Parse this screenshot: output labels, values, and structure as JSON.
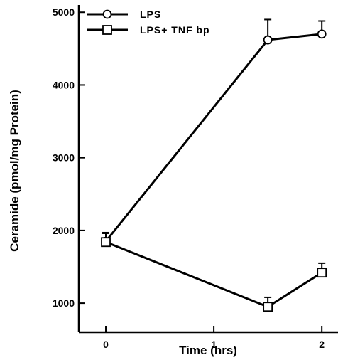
{
  "chart_data": {
    "type": "line",
    "xlabel": "Time  (hrs)",
    "ylabel": "Ceramide (pmol/mg Protein)",
    "xlim": [
      -0.25,
      2.15
    ],
    "ylim": [
      600,
      5100
    ],
    "x_ticks": [
      0,
      1,
      2
    ],
    "y_ticks": [
      1000,
      2000,
      3000,
      4000,
      5000
    ],
    "grid": false,
    "legend_position": "top-left",
    "series": [
      {
        "name": "LPS",
        "marker": "circle",
        "x": [
          0,
          1.5,
          2
        ],
        "y": [
          1850,
          4620,
          4700
        ],
        "error_upper": [
          120,
          280,
          180
        ]
      },
      {
        "name": "LPS+  TNF  bp",
        "marker": "square",
        "x": [
          0,
          1.5,
          2
        ],
        "y": [
          1840,
          950,
          1420
        ],
        "error_upper": [
          120,
          130,
          130
        ]
      }
    ]
  }
}
